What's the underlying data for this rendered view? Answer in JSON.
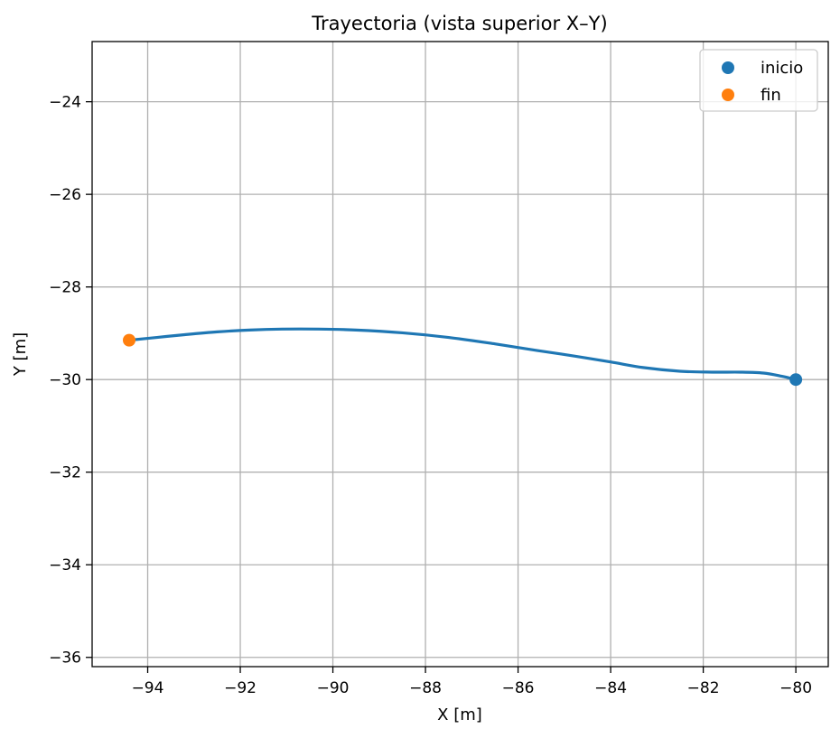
{
  "chart_data": {
    "type": "line",
    "title": "Trayectoria (vista superior X–Y)",
    "xlabel": "X [m]",
    "ylabel": "Y [m]",
    "xlim": [
      -95.2,
      -79.3
    ],
    "ylim": [
      -36.2,
      -22.7
    ],
    "xticks": [
      -94,
      -92,
      -90,
      -88,
      -86,
      -84,
      -82,
      -80
    ],
    "yticks": [
      -24,
      -26,
      -28,
      -30,
      -32,
      -34,
      -36
    ],
    "tick_format": "−{abs}",
    "grid": true,
    "legend_position": "top-right",
    "series": [
      {
        "kind": "line",
        "color": "#1f77b4",
        "x": [
          -80.0,
          -80.3,
          -80.7,
          -81.2,
          -81.8,
          -82.5,
          -83.3,
          -84.0,
          -84.8,
          -85.6,
          -86.5,
          -87.5,
          -88.5,
          -89.5,
          -90.3,
          -91.1,
          -91.8,
          -92.5,
          -93.2,
          -93.8,
          -94.4
        ],
        "y": [
          -30.0,
          -29.93,
          -29.86,
          -29.84,
          -29.84,
          -29.82,
          -29.74,
          -29.62,
          -29.49,
          -29.37,
          -29.23,
          -29.09,
          -28.99,
          -28.93,
          -28.91,
          -28.91,
          -28.93,
          -28.97,
          -29.03,
          -29.09,
          -29.15
        ]
      },
      {
        "kind": "point",
        "name": "inicio",
        "color": "#1f77b4",
        "x": [
          -80.0
        ],
        "y": [
          -30.0
        ]
      },
      {
        "kind": "point",
        "name": "fin",
        "color": "#ff7f0e",
        "x": [
          -94.4
        ],
        "y": [
          -29.15
        ]
      }
    ]
  }
}
